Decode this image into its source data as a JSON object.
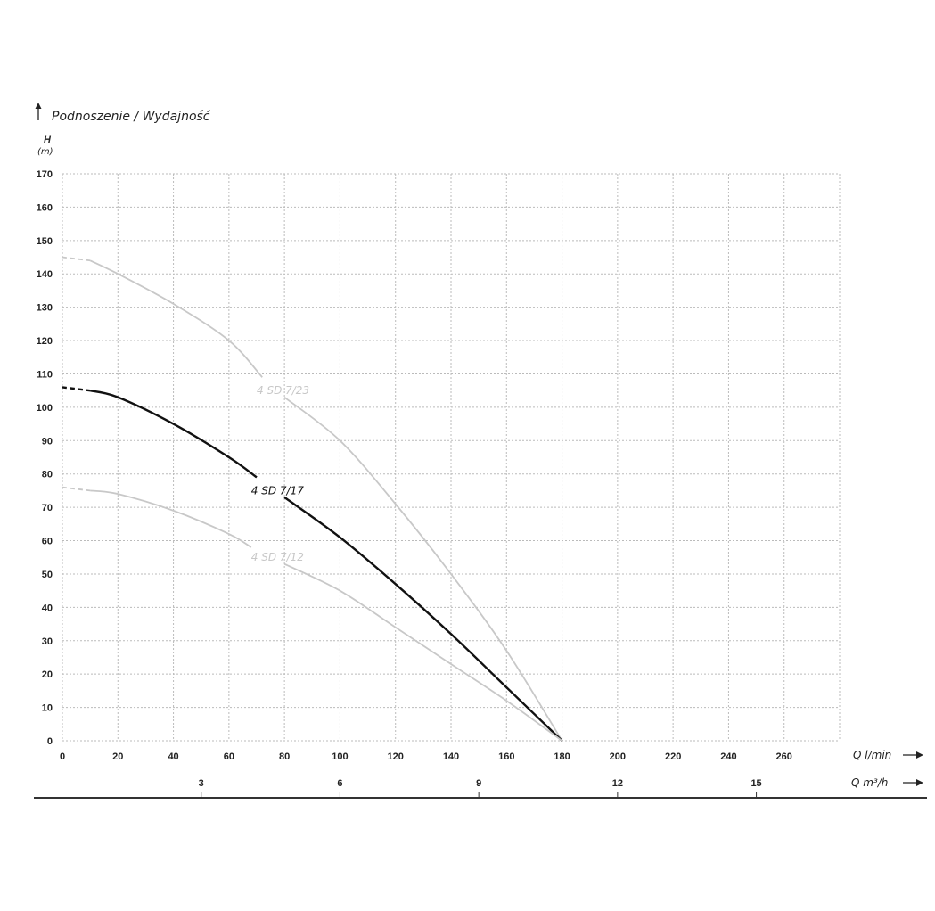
{
  "chart_data": {
    "type": "line",
    "title": "Podnoszenie / Wydajność",
    "ylabel": "H",
    "yunit": "(m)",
    "xlabel": "Q l/min",
    "x2label": "Q m³/h",
    "xlim": [
      0,
      280
    ],
    "ylim": [
      0,
      170
    ],
    "xticks": [
      0,
      20,
      40,
      60,
      80,
      100,
      120,
      140,
      160,
      180,
      200,
      220,
      240,
      260
    ],
    "yticks": [
      0,
      10,
      20,
      30,
      40,
      50,
      60,
      70,
      80,
      90,
      100,
      110,
      120,
      130,
      140,
      150,
      160,
      170
    ],
    "x2ticks": [
      3,
      6,
      9,
      12,
      15
    ],
    "grid": true,
    "series": [
      {
        "name": "4 SD 7/23",
        "color": "#c8c8c8",
        "x": [
          0,
          10,
          20,
          40,
          60,
          72,
          80,
          100,
          120,
          140,
          160,
          180
        ],
        "y": [
          145,
          144,
          140,
          131,
          120,
          109,
          103,
          90,
          71,
          50,
          27,
          0
        ],
        "label_at": [
          70,
          105
        ]
      },
      {
        "name": "4 SD 7/17",
        "color": "#111111",
        "x": [
          0,
          10,
          20,
          40,
          60,
          70,
          80,
          100,
          120,
          140,
          160,
          180
        ],
        "y": [
          106,
          105,
          103,
          95,
          85,
          79,
          73,
          61,
          47,
          32,
          16,
          0
        ],
        "label_at": [
          68,
          75
        ]
      },
      {
        "name": "4 SD 7/12",
        "color": "#c8c8c8",
        "x": [
          0,
          10,
          20,
          40,
          60,
          68,
          80,
          100,
          120,
          140,
          160,
          180
        ],
        "y": [
          76,
          75,
          74,
          69,
          62,
          58,
          53,
          45,
          34,
          23,
          12,
          0
        ],
        "label_at": [
          68,
          55
        ]
      }
    ]
  }
}
